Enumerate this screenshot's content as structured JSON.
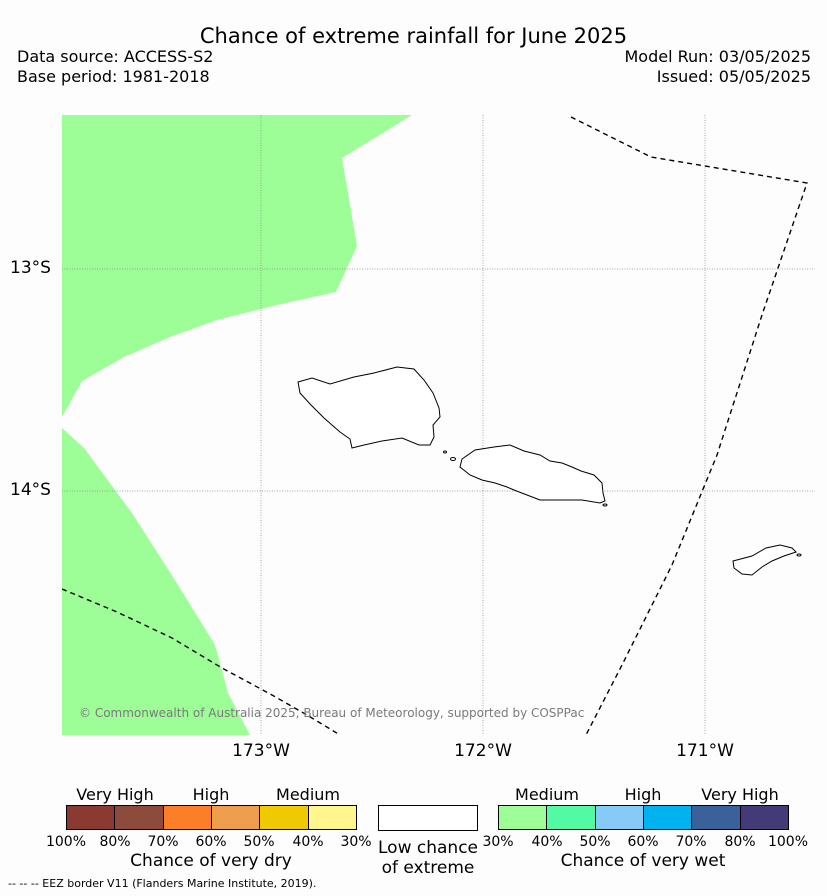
{
  "title": "Chance of extreme rainfall for June 2025",
  "meta_left": {
    "source": "Data source: ACCESS-S2",
    "base": "Base period: 1981-2018"
  },
  "meta_right": {
    "model_run": "Model Run: 03/05/2025",
    "issued": "Issued: 05/05/2025"
  },
  "map": {
    "lat_labels": [
      "13°S",
      "14°S"
    ],
    "lon_labels": [
      "173°W",
      "172°W",
      "171°W"
    ],
    "wet_fill_color": "#9dfd97",
    "regions": [
      {
        "name": "upolu-island"
      },
      {
        "name": "tutuila-island"
      }
    ],
    "copyright": "© Commonwealth of Australia 2025, Bureau of Meteorology, supported by COSPPac"
  },
  "legend": {
    "dry": {
      "group_labels": [
        "Very High",
        "High",
        "Medium"
      ],
      "ticks": [
        "100%",
        "80%",
        "70%",
        "60%",
        "50%",
        "40%",
        "30%"
      ],
      "title": "Chance of very dry",
      "colors": [
        "#8b3a32",
        "#8c4b3b",
        "#fc7f27",
        "#ef9e4d",
        "#efca00",
        "#fff68c"
      ]
    },
    "low": {
      "label_line1": "Low chance",
      "label_line2": "of extreme"
    },
    "wet": {
      "group_labels": [
        "Medium",
        "High",
        "Very High"
      ],
      "ticks": [
        "30%",
        "40%",
        "50%",
        "60%",
        "70%",
        "80%",
        "100%"
      ],
      "title": "Chance of very wet",
      "colors": [
        "#9dfd97",
        "#52fba3",
        "#86cbf7",
        "#00b2ed",
        "#3a6199",
        "#433b77"
      ]
    }
  },
  "eez_note": "--  --  -- EEZ border V11 (Flanders Marine Institute, 2019)."
}
